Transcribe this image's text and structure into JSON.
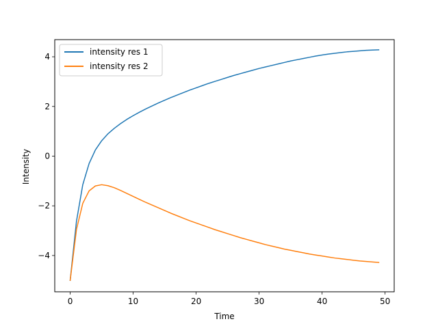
{
  "chart_data": {
    "type": "line",
    "title": "",
    "xlabel": "Time",
    "ylabel": "Intensity",
    "xlim": [
      -2.45,
      51.45
    ],
    "ylim": [
      -5.46,
      4.69
    ],
    "xticks": [
      0,
      10,
      20,
      30,
      40,
      50
    ],
    "yticks": [
      -4,
      -2,
      0,
      2,
      4
    ],
    "grid": false,
    "legend_position": "top-left",
    "x": [
      0,
      1,
      2,
      3,
      4,
      5,
      6,
      7,
      8,
      9,
      10,
      11,
      12,
      13,
      14,
      15,
      16,
      17,
      18,
      19,
      20,
      21,
      22,
      23,
      24,
      25,
      26,
      27,
      28,
      29,
      30,
      31,
      32,
      33,
      34,
      35,
      36,
      37,
      38,
      39,
      40,
      41,
      42,
      43,
      44,
      45,
      46,
      47,
      48,
      49
    ],
    "series": [
      {
        "name": "intensity res 1",
        "color": "#1f77b4",
        "values": [
          -5.0,
          -2.62,
          -1.15,
          -0.3,
          0.25,
          0.62,
          0.9,
          1.12,
          1.31,
          1.48,
          1.63,
          1.77,
          1.9,
          2.02,
          2.14,
          2.25,
          2.36,
          2.46,
          2.56,
          2.66,
          2.75,
          2.84,
          2.93,
          3.01,
          3.09,
          3.17,
          3.25,
          3.32,
          3.39,
          3.46,
          3.53,
          3.59,
          3.65,
          3.71,
          3.77,
          3.83,
          3.88,
          3.93,
          3.98,
          4.03,
          4.07,
          4.11,
          4.14,
          4.17,
          4.2,
          4.22,
          4.24,
          4.26,
          4.27,
          4.28
        ]
      },
      {
        "name": "intensity res 2",
        "color": "#ff7f0e",
        "values": [
          -5.0,
          -2.95,
          -1.9,
          -1.4,
          -1.2,
          -1.15,
          -1.19,
          -1.27,
          -1.38,
          -1.5,
          -1.62,
          -1.74,
          -1.86,
          -1.97,
          -2.08,
          -2.19,
          -2.3,
          -2.4,
          -2.5,
          -2.6,
          -2.69,
          -2.78,
          -2.87,
          -2.96,
          -3.04,
          -3.12,
          -3.2,
          -3.28,
          -3.35,
          -3.42,
          -3.49,
          -3.56,
          -3.62,
          -3.68,
          -3.74,
          -3.79,
          -3.84,
          -3.89,
          -3.94,
          -3.98,
          -4.02,
          -4.06,
          -4.1,
          -4.13,
          -4.16,
          -4.19,
          -4.22,
          -4.24,
          -4.26,
          -4.28
        ]
      }
    ]
  }
}
